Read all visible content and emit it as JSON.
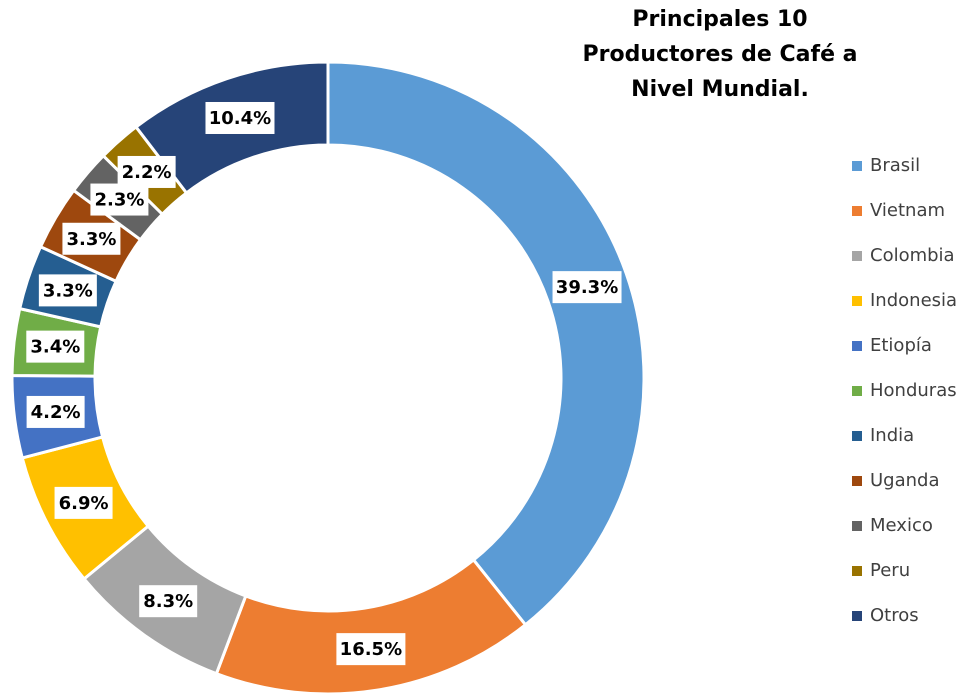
{
  "chart_data": {
    "type": "pie",
    "variant": "donut",
    "title_lines": [
      "Principales 10",
      "Productores de Café a",
      "Nivel Mundial."
    ],
    "legend_position": "right",
    "data_label_format": "percent, one decimal",
    "slices": [
      {
        "label": "Brasil",
        "value": 39.3,
        "display": "39.3%",
        "color": "#5B9BD5"
      },
      {
        "label": "Vietnam",
        "value": 16.5,
        "display": "16.5%",
        "color": "#ED7D31"
      },
      {
        "label": "Colombia",
        "value": 8.3,
        "display": "8.3%",
        "color": "#A5A5A5"
      },
      {
        "label": "Indonesia",
        "value": 6.9,
        "display": "6.9%",
        "color": "#FFC000"
      },
      {
        "label": "Etiopía",
        "value": 4.2,
        "display": "4.2%",
        "color": "#4472C4"
      },
      {
        "label": "Honduras",
        "value": 3.4,
        "display": "3.4%",
        "color": "#70AD47"
      },
      {
        "label": "India",
        "value": 3.3,
        "display": "3.3%",
        "color": "#255E91"
      },
      {
        "label": "Uganda",
        "value": 3.3,
        "display": "3.3%",
        "color": "#9E480E"
      },
      {
        "label": "Mexico",
        "value": 2.3,
        "display": "2.3%",
        "color": "#636363"
      },
      {
        "label": "Peru",
        "value": 2.2,
        "display": "2.2%",
        "color": "#997300"
      },
      {
        "label": "Otros",
        "value": 10.4,
        "display": "10.4%",
        "color": "#264478"
      }
    ]
  }
}
